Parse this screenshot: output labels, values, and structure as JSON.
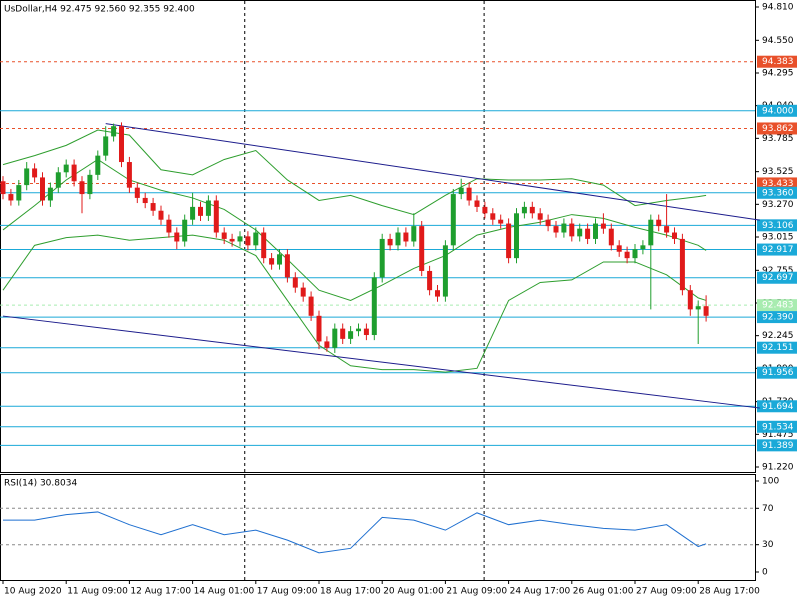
{
  "chart_data": [
    {
      "type": "candlestick",
      "title": "UsDollar,H4  92.475 92.560 92.355 92.400",
      "ylim": [
        91.181,
        94.849
      ],
      "yticks": [
        {
          "value": 94.81,
          "label": "94.810"
        },
        {
          "value": 94.55,
          "label": "94.550"
        },
        {
          "value": 94.295,
          "label": "94.295"
        },
        {
          "value": 94.04,
          "label": "94.040"
        },
        {
          "value": 93.785,
          "label": "93.785"
        },
        {
          "value": 93.525,
          "label": "93.525"
        },
        {
          "value": 93.27,
          "label": "93.270"
        },
        {
          "value": 93.015,
          "label": "93.015"
        },
        {
          "value": 92.755,
          "label": "92.755"
        },
        {
          "value": 92.5,
          "label": "92.500"
        },
        {
          "value": 92.245,
          "label": "92.245"
        },
        {
          "value": 91.99,
          "label": "91.990"
        },
        {
          "value": 91.73,
          "label": "91.730"
        },
        {
          "value": 91.475,
          "label": "91.475"
        },
        {
          "value": 91.22,
          "label": "91.220"
        }
      ],
      "up_color": "#1e9e2e",
      "down_color": "#e01a1a",
      "candles": [
        [
          93.45,
          93.49,
          93.31,
          93.35
        ],
        [
          93.35,
          93.39,
          93.26,
          93.3
        ],
        [
          93.3,
          93.46,
          93.26,
          93.42
        ],
        [
          93.42,
          93.6,
          93.38,
          93.55
        ],
        [
          93.55,
          93.59,
          93.44,
          93.48
        ],
        [
          93.48,
          93.52,
          93.26,
          93.3
        ],
        [
          93.3,
          93.44,
          93.25,
          93.4
        ],
        [
          93.4,
          93.56,
          93.36,
          93.52
        ],
        [
          93.52,
          93.62,
          93.48,
          93.58
        ],
        [
          93.58,
          93.62,
          93.41,
          93.45
        ],
        [
          93.45,
          93.49,
          93.2,
          93.35
        ],
        [
          93.35,
          93.54,
          93.31,
          93.5
        ],
        [
          93.5,
          93.69,
          93.46,
          93.65
        ],
        [
          93.65,
          93.88,
          93.61,
          93.8
        ],
        [
          93.8,
          93.9,
          93.76,
          93.88
        ],
        [
          93.88,
          93.91,
          93.56,
          93.6
        ],
        [
          93.6,
          93.64,
          93.36,
          93.4
        ],
        [
          93.4,
          93.44,
          93.28,
          93.32
        ],
        [
          93.32,
          93.36,
          93.24,
          93.28
        ],
        [
          93.28,
          93.32,
          93.18,
          93.22
        ],
        [
          93.22,
          93.26,
          93.11,
          93.15
        ],
        [
          93.15,
          93.19,
          93.01,
          93.05
        ],
        [
          93.05,
          93.09,
          92.92,
          92.98
        ],
        [
          92.98,
          93.19,
          92.94,
          93.15
        ],
        [
          93.15,
          93.36,
          93.11,
          93.25
        ],
        [
          93.25,
          93.29,
          93.14,
          93.18
        ],
        [
          93.18,
          93.34,
          93.14,
          93.3
        ],
        [
          93.3,
          93.34,
          93.01,
          93.05
        ],
        [
          93.05,
          93.09,
          92.96,
          93.0
        ],
        [
          93.0,
          93.04,
          92.94,
          92.98
        ],
        [
          92.98,
          93.06,
          92.94,
          93.02
        ],
        [
          93.02,
          93.06,
          92.91,
          92.95
        ],
        [
          92.95,
          93.09,
          92.91,
          93.05
        ],
        [
          93.05,
          93.09,
          92.81,
          92.85
        ],
        [
          92.85,
          92.89,
          92.76,
          92.8
        ],
        [
          92.8,
          92.92,
          92.76,
          92.88
        ],
        [
          92.88,
          92.92,
          92.66,
          92.7
        ],
        [
          92.7,
          92.74,
          92.58,
          92.62
        ],
        [
          92.62,
          92.66,
          92.51,
          92.55
        ],
        [
          92.55,
          92.59,
          92.36,
          92.4
        ],
        [
          92.4,
          92.44,
          92.14,
          92.2
        ],
        [
          92.2,
          92.24,
          92.12,
          92.15
        ],
        [
          92.15,
          92.34,
          92.11,
          92.3
        ],
        [
          92.3,
          92.34,
          92.18,
          92.22
        ],
        [
          92.22,
          92.32,
          92.18,
          92.28
        ],
        [
          92.28,
          92.34,
          92.24,
          92.3
        ],
        [
          92.3,
          92.34,
          92.21,
          92.25
        ],
        [
          92.25,
          92.74,
          92.21,
          92.7
        ],
        [
          92.7,
          93.04,
          92.66,
          93.0
        ],
        [
          93.0,
          93.04,
          92.91,
          92.95
        ],
        [
          92.95,
          93.09,
          92.91,
          93.05
        ],
        [
          93.05,
          93.09,
          92.94,
          92.98
        ],
        [
          92.98,
          93.2,
          92.94,
          93.1
        ],
        [
          93.1,
          93.14,
          92.71,
          92.75
        ],
        [
          92.75,
          92.79,
          92.56,
          92.6
        ],
        [
          92.6,
          92.64,
          92.51,
          92.55
        ],
        [
          92.55,
          92.99,
          92.51,
          92.95
        ],
        [
          92.95,
          93.39,
          92.91,
          93.35
        ],
        [
          93.35,
          93.47,
          93.31,
          93.4
        ],
        [
          93.4,
          93.44,
          93.26,
          93.3
        ],
        [
          93.3,
          93.34,
          93.21,
          93.25
        ],
        [
          93.25,
          93.29,
          93.16,
          93.2
        ],
        [
          93.2,
          93.24,
          93.11,
          93.15
        ],
        [
          93.15,
          93.19,
          93.08,
          93.12
        ],
        [
          93.12,
          93.16,
          92.81,
          92.85
        ],
        [
          92.85,
          93.24,
          92.81,
          93.2
        ],
        [
          93.2,
          93.29,
          93.16,
          93.25
        ],
        [
          93.25,
          93.29,
          93.16,
          93.2
        ],
        [
          93.2,
          93.24,
          93.11,
          93.15
        ],
        [
          93.15,
          93.19,
          93.06,
          93.1
        ],
        [
          93.1,
          93.14,
          93.01,
          93.05
        ],
        [
          93.05,
          93.16,
          93.01,
          93.12
        ],
        [
          93.12,
          93.16,
          92.98,
          93.02
        ],
        [
          93.02,
          93.12,
          92.98,
          93.08
        ],
        [
          93.08,
          93.12,
          92.96,
          93.0
        ],
        [
          93.0,
          93.16,
          92.96,
          93.12
        ],
        [
          93.12,
          93.2,
          93.04,
          93.08
        ],
        [
          93.08,
          93.12,
          92.91,
          92.95
        ],
        [
          92.95,
          92.99,
          92.86,
          92.9
        ],
        [
          92.9,
          92.94,
          92.81,
          92.85
        ],
        [
          92.85,
          92.96,
          92.81,
          92.92
        ],
        [
          92.92,
          92.99,
          92.88,
          92.95
        ],
        [
          92.95,
          93.19,
          92.45,
          93.15
        ],
        [
          93.15,
          93.19,
          93.06,
          93.1
        ],
        [
          93.1,
          93.35,
          93.01,
          93.05
        ],
        [
          93.05,
          93.09,
          92.96,
          93.0
        ],
        [
          93.0,
          93.04,
          92.56,
          92.6
        ],
        [
          92.6,
          92.64,
          92.4,
          92.45
        ],
        [
          92.45,
          92.52,
          92.18,
          92.475
        ],
        [
          92.475,
          92.56,
          92.355,
          92.4
        ]
      ],
      "bands": {
        "color": "#2e9e2e",
        "x": [
          0,
          4,
          8,
          12,
          16,
          20,
          24,
          28,
          32,
          36,
          40,
          44,
          48,
          52,
          56,
          60,
          64,
          68,
          72,
          76,
          80,
          84,
          88,
          89
        ],
        "upper": [
          93.58,
          93.65,
          93.73,
          93.85,
          93.81,
          93.54,
          93.5,
          93.62,
          93.69,
          93.46,
          93.3,
          93.34,
          93.26,
          93.19,
          93.34,
          93.47,
          93.46,
          93.46,
          93.47,
          93.42,
          93.26,
          93.3,
          93.33,
          93.34
        ],
        "middle": [
          93.07,
          93.26,
          93.46,
          93.62,
          93.46,
          93.38,
          93.32,
          93.23,
          93.07,
          92.84,
          92.6,
          92.52,
          92.64,
          92.77,
          92.87,
          93.03,
          93.09,
          93.13,
          93.19,
          93.16,
          93.09,
          93.03,
          92.95,
          92.91
        ],
        "lower": [
          92.6,
          92.95,
          93.01,
          93.03,
          92.99,
          93.01,
          93.03,
          92.99,
          92.87,
          92.52,
          92.17,
          92.01,
          91.98,
          91.98,
          91.96,
          91.99,
          92.52,
          92.66,
          92.68,
          92.82,
          92.82,
          92.72,
          92.54,
          92.52
        ]
      },
      "trendlines": {
        "color": "#1c1c8c",
        "lines": [
          {
            "x": [
              13,
              95.8
            ],
            "y": [
              93.9,
              93.147
            ]
          },
          {
            "x": [
              0,
              95.8
            ],
            "y": [
              92.398,
              91.68
            ]
          }
        ]
      },
      "separators": [
        30.6,
        60.9
      ],
      "levels": [
        {
          "value": 94.383,
          "label": "94.383",
          "color": "#e8502a",
          "style": "dashed"
        },
        {
          "value": 94.0,
          "label": "94.000",
          "color": "#1aa9d8",
          "style": "solid"
        },
        {
          "value": 93.862,
          "label": "93.862",
          "color": "#e8502a",
          "style": "dashed"
        },
        {
          "value": 93.433,
          "label": "93.433",
          "color": "#e8502a",
          "style": "dashed"
        },
        {
          "value": 93.36,
          "label": "93.360",
          "color": "#1aa9d8",
          "style": "solid"
        },
        {
          "value": 93.106,
          "label": "93.106",
          "color": "#1aa9d8",
          "style": "solid"
        },
        {
          "value": 92.917,
          "label": "92.917",
          "color": "#1aa9d8",
          "style": "solid"
        },
        {
          "value": 92.697,
          "label": "92.697",
          "color": "#1aa9d8",
          "style": "solid"
        },
        {
          "value": 92.483,
          "label": "92.483",
          "color": "#a8ecb0",
          "style": "dashed"
        },
        {
          "value": 92.39,
          "label": "92.390",
          "color": "#1aa9d8",
          "style": "solid"
        },
        {
          "value": 92.151,
          "label": "92.151",
          "color": "#1aa9d8",
          "style": "solid"
        },
        {
          "value": 91.956,
          "label": "91.956",
          "color": "#1aa9d8",
          "style": "solid"
        },
        {
          "value": 91.694,
          "label": "91.694",
          "color": "#1aa9d8",
          "style": "solid"
        },
        {
          "value": 91.534,
          "label": "91.534",
          "color": "#1aa9d8",
          "style": "solid"
        },
        {
          "value": 91.389,
          "label": "91.389",
          "color": "#1aa9d8",
          "style": "solid"
        }
      ]
    },
    {
      "type": "line",
      "title": "RSI(14) 30.8034",
      "color": "#1e6fd0",
      "ylim": [
        -8.8,
        106.6
      ],
      "yticks": [
        0,
        30,
        70,
        100
      ],
      "dashed_levels": [
        30,
        70
      ],
      "x": [
        0,
        4,
        8,
        12,
        16,
        20,
        24,
        28,
        32,
        36,
        40,
        44,
        48,
        52,
        56,
        60,
        64,
        68,
        72,
        76,
        80,
        84,
        88,
        89
      ],
      "values": [
        57,
        57,
        63,
        66,
        52,
        41,
        52,
        41,
        46,
        35,
        21,
        26,
        60,
        57,
        46,
        65,
        52,
        57,
        52,
        48,
        46,
        52,
        28,
        31
      ],
      "xticks": [
        {
          "value": 0,
          "label": "10 Aug 2020"
        },
        {
          "value": 8,
          "label": "11 Aug 09:00"
        },
        {
          "value": 16,
          "label": "12 Aug 17:00"
        },
        {
          "value": 24,
          "label": "14 Aug 01:00"
        },
        {
          "value": 32,
          "label": "17 Aug 09:00"
        },
        {
          "value": 40,
          "label": "18 Aug 17:00"
        },
        {
          "value": 48,
          "label": "20 Aug 01:00"
        },
        {
          "value": 56,
          "label": "21 Aug 09:00"
        },
        {
          "value": 64,
          "label": "24 Aug 17:00"
        },
        {
          "value": 72,
          "label": "26 Aug 01:00"
        },
        {
          "value": 80,
          "label": "27 Aug 09:00"
        },
        {
          "value": 88,
          "label": "28 Aug 17:00"
        }
      ]
    }
  ]
}
